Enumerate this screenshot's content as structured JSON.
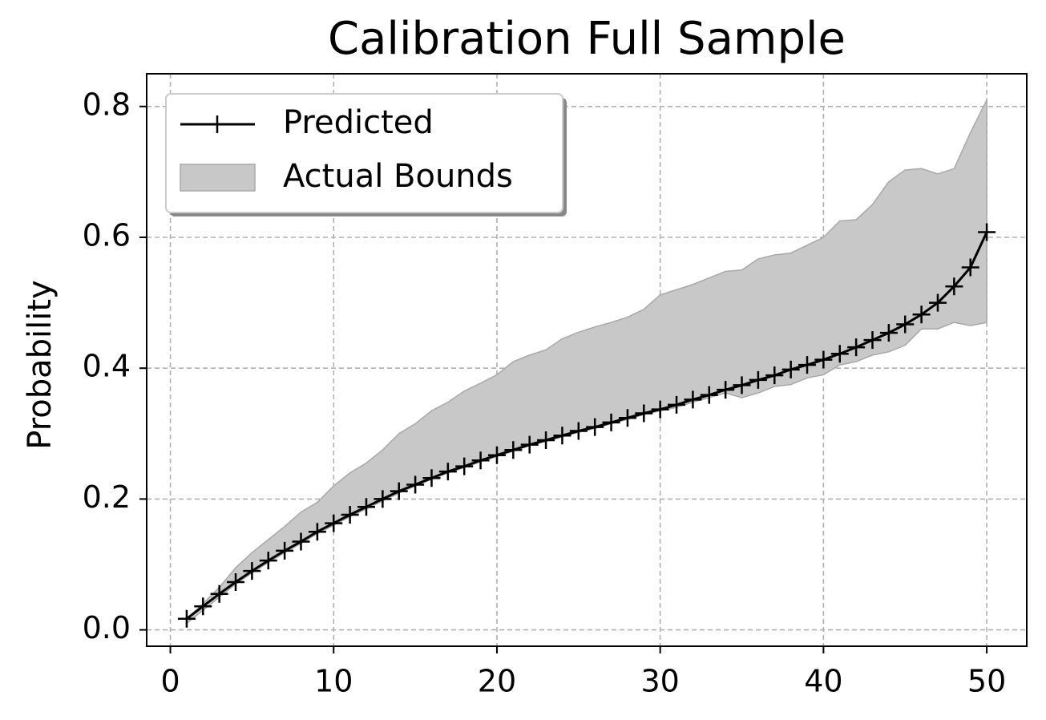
{
  "chart_data": {
    "type": "line",
    "title": "Calibration Full Sample",
    "y_label": "Probability",
    "x": [
      1,
      2,
      3,
      4,
      5,
      6,
      7,
      8,
      9,
      10,
      11,
      12,
      13,
      14,
      15,
      16,
      17,
      18,
      19,
      20,
      21,
      22,
      23,
      24,
      25,
      26,
      27,
      28,
      29,
      30,
      31,
      32,
      33,
      34,
      35,
      36,
      37,
      38,
      39,
      40,
      41,
      42,
      43,
      44,
      45,
      46,
      47,
      48,
      49,
      50
    ],
    "series": [
      {
        "name": "Predicted",
        "color": "#000000",
        "values": [
          0.017,
          0.036,
          0.055,
          0.073,
          0.09,
          0.106,
          0.121,
          0.135,
          0.15,
          0.163,
          0.176,
          0.188,
          0.2,
          0.212,
          0.222,
          0.232,
          0.242,
          0.25,
          0.259,
          0.267,
          0.275,
          0.283,
          0.29,
          0.297,
          0.304,
          0.31,
          0.317,
          0.324,
          0.331,
          0.337,
          0.344,
          0.352,
          0.359,
          0.367,
          0.374,
          0.382,
          0.389,
          0.398,
          0.405,
          0.413,
          0.422,
          0.432,
          0.443,
          0.454,
          0.467,
          0.482,
          0.5,
          0.525,
          0.554,
          0.608
        ]
      }
    ],
    "band": {
      "name": "Actual Bounds",
      "color": "#c8c8c8",
      "lower": [
        0.01,
        0.03,
        0.05,
        0.07,
        0.087,
        0.103,
        0.118,
        0.132,
        0.147,
        0.16,
        0.173,
        0.185,
        0.197,
        0.209,
        0.22,
        0.23,
        0.24,
        0.248,
        0.257,
        0.265,
        0.273,
        0.282,
        0.288,
        0.295,
        0.302,
        0.308,
        0.315,
        0.322,
        0.329,
        0.335,
        0.34,
        0.348,
        0.355,
        0.362,
        0.355,
        0.362,
        0.372,
        0.375,
        0.385,
        0.39,
        0.405,
        0.41,
        0.42,
        0.425,
        0.435,
        0.46,
        0.46,
        0.47,
        0.465,
        0.47
      ],
      "upper": [
        0.017,
        0.04,
        0.065,
        0.095,
        0.118,
        0.138,
        0.158,
        0.18,
        0.195,
        0.22,
        0.24,
        0.255,
        0.275,
        0.3,
        0.315,
        0.335,
        0.348,
        0.365,
        0.377,
        0.39,
        0.41,
        0.42,
        0.428,
        0.445,
        0.455,
        0.463,
        0.47,
        0.478,
        0.49,
        0.512,
        0.52,
        0.528,
        0.538,
        0.548,
        0.55,
        0.567,
        0.573,
        0.576,
        0.588,
        0.6,
        0.625,
        0.627,
        0.65,
        0.685,
        0.703,
        0.705,
        0.697,
        0.705,
        0.76,
        0.81
      ]
    },
    "xlim": [
      -1.45,
      52.45
    ],
    "ylim": [
      -0.025,
      0.85
    ],
    "xticks": [
      0,
      10,
      20,
      30,
      40,
      50
    ],
    "yticks": [
      {
        "value": 0,
        "label": "0.0"
      },
      0.2,
      0.4,
      0.6,
      0.8
    ],
    "grid": true,
    "legend": "upper left"
  }
}
